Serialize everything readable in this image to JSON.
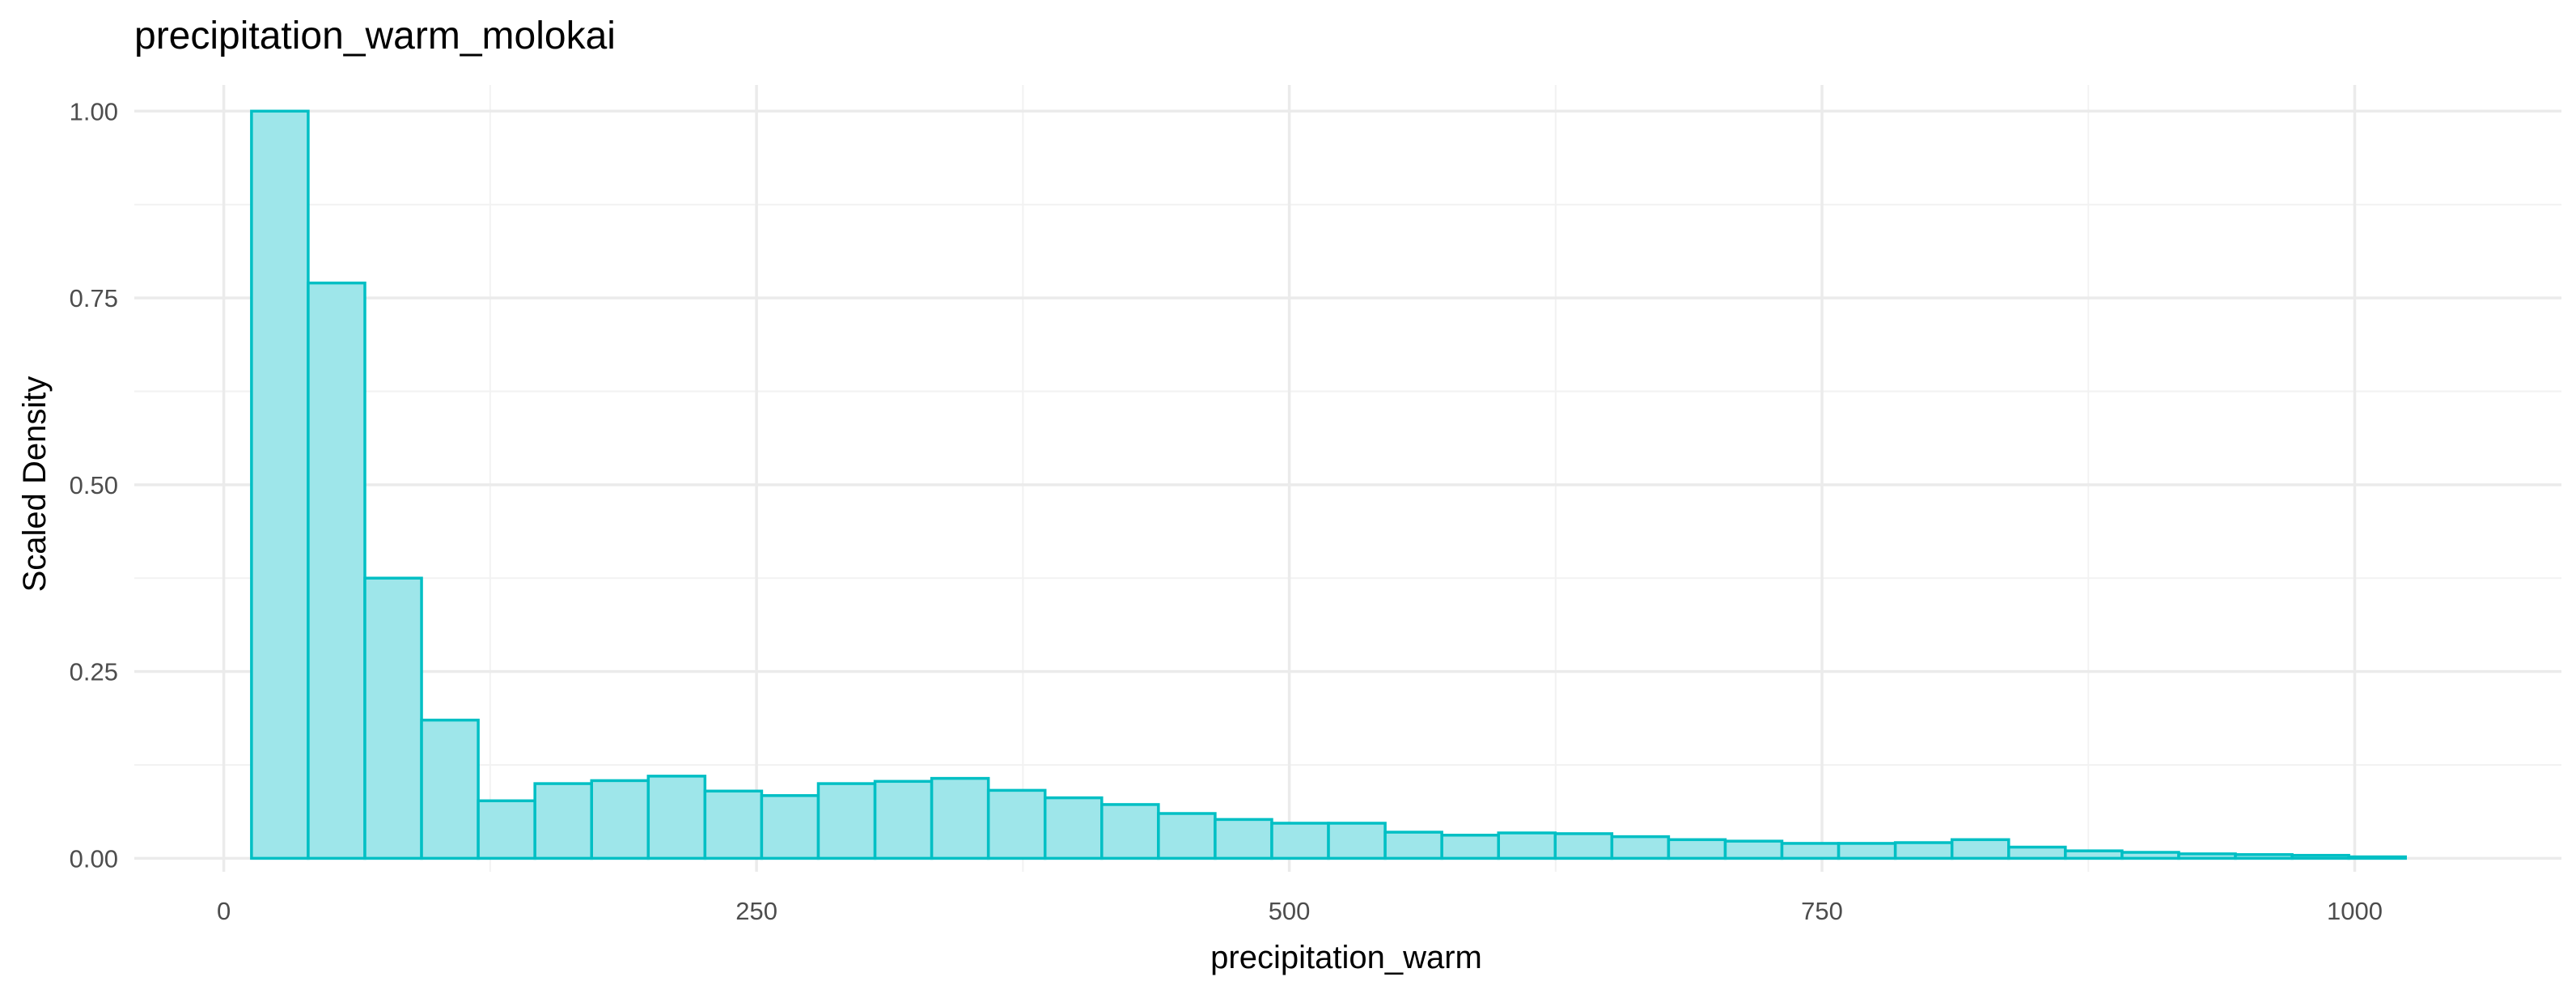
{
  "chart_data": {
    "type": "bar",
    "title": "precipitation_warm_molokai",
    "xlabel": "precipitation_warm",
    "ylabel": "Scaled Density",
    "xlim": [
      -42,
      1097
    ],
    "ylim": [
      -0.018,
      1.035
    ],
    "x_ticks": [
      0,
      250,
      500,
      750,
      1000
    ],
    "x_tick_labels": [
      "0",
      "250",
      "500",
      "750",
      "1000"
    ],
    "y_ticks": [
      0,
      0.25,
      0.5,
      0.75,
      1.0
    ],
    "y_tick_labels": [
      "0.00",
      "0.25",
      "0.50",
      "0.75",
      "1.00"
    ],
    "grid": true,
    "bin_edges": [
      13,
      39.6,
      66.2,
      92.8,
      119.4,
      146,
      172.6,
      199.2,
      225.8,
      252.4,
      279,
      305.6,
      332.2,
      358.8,
      385.4,
      412,
      438.6,
      465.2,
      491.8,
      518.4,
      545,
      571.6,
      598.2,
      624.8,
      651.4,
      678,
      704.6,
      731.2,
      757.8,
      784.4,
      811,
      837.6,
      864.2,
      890.8,
      917.4,
      944,
      970.6,
      997.2,
      1023.8
    ],
    "values": [
      1.0,
      0.77,
      0.375,
      0.185,
      0.077,
      0.1,
      0.104,
      0.11,
      0.09,
      0.084,
      0.1,
      0.103,
      0.107,
      0.091,
      0.081,
      0.072,
      0.06,
      0.052,
      0.047,
      0.047,
      0.035,
      0.031,
      0.034,
      0.033,
      0.029,
      0.025,
      0.023,
      0.02,
      0.02,
      0.021,
      0.025,
      0.015,
      0.01,
      0.008,
      0.006,
      0.005,
      0.004,
      0.002
    ],
    "colors": {
      "bar_fill": "#9ee6ea",
      "bar_stroke": "#00bfc4",
      "grid_major": "#ebebeb",
      "grid_minor": "#f2f2f2"
    }
  }
}
